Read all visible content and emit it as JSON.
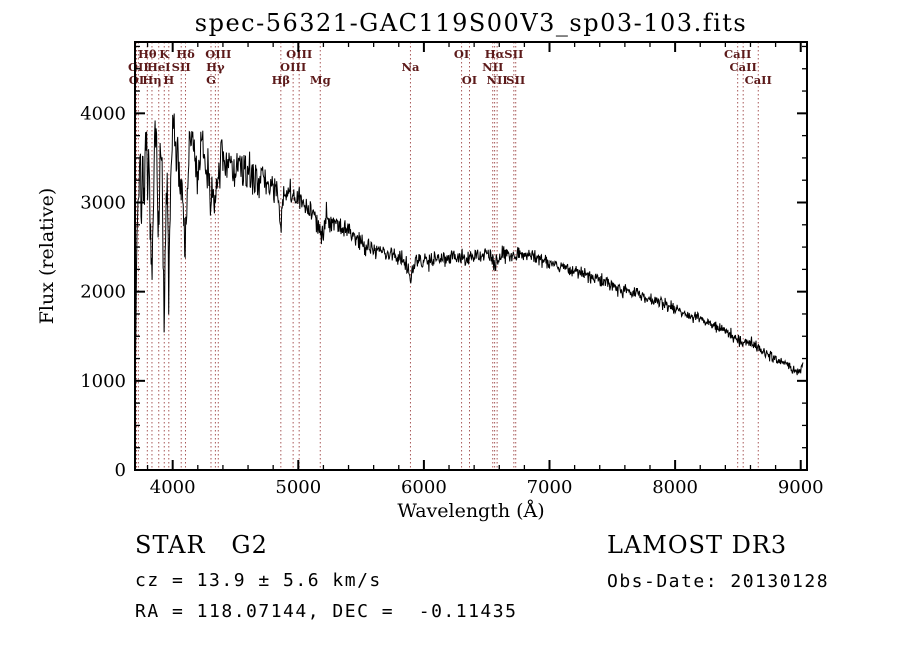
{
  "annotations": {
    "class_and_type": "STAR   G2",
    "cz": "cz = 13.9 ± 5.6 km/s",
    "radec": "RA = 118.07144, DEC =  -0.11435",
    "survey": "LAMOST DR3",
    "obs_date": "Obs-Date: 20130128"
  },
  "chart_data": {
    "type": "line",
    "title": "spec-56321-GAC119S00V3_sp03-103.fits",
    "xlabel": "Wavelength (Å)",
    "ylabel": "Flux (relative)",
    "xlim": [
      3700,
      9050
    ],
    "ylim": [
      0,
      4800
    ],
    "xticks": [
      4000,
      5000,
      6000,
      7000,
      8000,
      9000
    ],
    "yticks": [
      0,
      1000,
      2000,
      3000,
      4000
    ],
    "x_minor_step": 200,
    "y_minor_step": 250,
    "grid": false,
    "legend": false,
    "line_color": "#000000",
    "marker_line_color": "#a85858",
    "marker_label_color": "#5c1a1a",
    "noise_seed": 7,
    "spectral_lines": [
      {
        "wavelength": 3712,
        "label": "OI",
        "row": 2
      },
      {
        "wavelength": 3727,
        "label": "OII",
        "row": 1
      },
      {
        "wavelength": 3798,
        "label": "Hθ",
        "row": 0
      },
      {
        "wavelength": 3835,
        "label": "Hη",
        "row": 2
      },
      {
        "wavelength": 3889,
        "label": "HeI",
        "row": 1
      },
      {
        "wavelength": 3933,
        "label": "K",
        "row": 0
      },
      {
        "wavelength": 3969,
        "label": "H",
        "row": 2
      },
      {
        "wavelength": 4068,
        "label": "SII",
        "row": 1
      },
      {
        "wavelength": 4102,
        "label": "Hδ",
        "row": 0
      },
      {
        "wavelength": 4305,
        "label": "G",
        "row": 2
      },
      {
        "wavelength": 4340,
        "label": "Hγ",
        "row": 1
      },
      {
        "wavelength": 4363,
        "label": "OIII",
        "row": 0
      },
      {
        "wavelength": 4861,
        "label": "Hβ",
        "row": 2
      },
      {
        "wavelength": 4959,
        "label": "OIII",
        "row": 1
      },
      {
        "wavelength": 5007,
        "label": "OIII",
        "row": 0
      },
      {
        "wavelength": 5175,
        "label": "Mg",
        "row": 2
      },
      {
        "wavelength": 5893,
        "label": "Na",
        "row": 1
      },
      {
        "wavelength": 6300,
        "label": "OI",
        "row": 0
      },
      {
        "wavelength": 6363,
        "label": "OI",
        "row": 2
      },
      {
        "wavelength": 6548,
        "label": "NII",
        "row": 1
      },
      {
        "wavelength": 6563,
        "label": "Hα",
        "row": 0
      },
      {
        "wavelength": 6583,
        "label": "NII",
        "row": 2
      },
      {
        "wavelength": 6716,
        "label": "SII",
        "row": 0
      },
      {
        "wavelength": 6731,
        "label": "SII",
        "row": 2
      },
      {
        "wavelength": 8498,
        "label": "CaII",
        "row": 0
      },
      {
        "wavelength": 8542,
        "label": "CaII",
        "row": 1
      },
      {
        "wavelength": 8662,
        "label": "CaII",
        "row": 2
      }
    ],
    "continuum": [
      [
        3700,
        600
      ],
      [
        3706,
        1500
      ],
      [
        3712,
        2400
      ],
      [
        3720,
        2900
      ],
      [
        3730,
        3200
      ],
      [
        3740,
        3400
      ],
      [
        3750,
        2900
      ],
      [
        3762,
        3500
      ],
      [
        3775,
        3100
      ],
      [
        3788,
        3650
      ],
      [
        3798,
        3000
      ],
      [
        3810,
        3400
      ],
      [
        3822,
        2800
      ],
      [
        3835,
        1900
      ],
      [
        3848,
        3100
      ],
      [
        3860,
        3650
      ],
      [
        3872,
        3750
      ],
      [
        3889,
        2700
      ],
      [
        3900,
        3400
      ],
      [
        3912,
        3600
      ],
      [
        3933,
        1500
      ],
      [
        3948,
        2900
      ],
      [
        3958,
        3300
      ],
      [
        3969,
        1750
      ],
      [
        3980,
        2900
      ],
      [
        3995,
        3600
      ],
      [
        4005,
        4050
      ],
      [
        4020,
        3400
      ],
      [
        4040,
        3650
      ],
      [
        4060,
        3200
      ],
      [
        4080,
        3100
      ],
      [
        4102,
        2500
      ],
      [
        4120,
        3300
      ],
      [
        4140,
        3650
      ],
      [
        4160,
        3750
      ],
      [
        4180,
        3400
      ],
      [
        4200,
        3300
      ],
      [
        4225,
        3600
      ],
      [
        4250,
        3500
      ],
      [
        4280,
        3350
      ],
      [
        4305,
        3000
      ],
      [
        4325,
        3300
      ],
      [
        4340,
        2800
      ],
      [
        4360,
        3300
      ],
      [
        4390,
        3500
      ],
      [
        4420,
        3300
      ],
      [
        4455,
        3550
      ],
      [
        4490,
        3300
      ],
      [
        4530,
        3450
      ],
      [
        4570,
        3300
      ],
      [
        4610,
        3350
      ],
      [
        4650,
        3250
      ],
      [
        4700,
        3300
      ],
      [
        4750,
        3200
      ],
      [
        4800,
        3200
      ],
      [
        4830,
        3100
      ],
      [
        4861,
        2700
      ],
      [
        4890,
        3150
      ],
      [
        4920,
        3100
      ],
      [
        4960,
        3050
      ],
      [
        5000,
        3050
      ],
      [
        5040,
        2950
      ],
      [
        5080,
        2950
      ],
      [
        5120,
        2900
      ],
      [
        5175,
        2600
      ],
      [
        5220,
        2850
      ],
      [
        5260,
        2800
      ],
      [
        5300,
        2780
      ],
      [
        5350,
        2720
      ],
      [
        5400,
        2680
      ],
      [
        5450,
        2620
      ],
      [
        5500,
        2560
      ],
      [
        5560,
        2510
      ],
      [
        5620,
        2470
      ],
      [
        5680,
        2440
      ],
      [
        5740,
        2410
      ],
      [
        5800,
        2390
      ],
      [
        5850,
        2360
      ],
      [
        5893,
        2190
      ],
      [
        5940,
        2330
      ],
      [
        6000,
        2350
      ],
      [
        6060,
        2370
      ],
      [
        6120,
        2380
      ],
      [
        6180,
        2395
      ],
      [
        6240,
        2400
      ],
      [
        6300,
        2370
      ],
      [
        6363,
        2360
      ],
      [
        6420,
        2400
      ],
      [
        6480,
        2420
      ],
      [
        6520,
        2430
      ],
      [
        6563,
        2260
      ],
      [
        6610,
        2420
      ],
      [
        6660,
        2440
      ],
      [
        6716,
        2410
      ],
      [
        6760,
        2430
      ],
      [
        6820,
        2420
      ],
      [
        6880,
        2400
      ],
      [
        6940,
        2360
      ],
      [
        7000,
        2330
      ],
      [
        7060,
        2300
      ],
      [
        7120,
        2270
      ],
      [
        7180,
        2240
      ],
      [
        7240,
        2210
      ],
      [
        7300,
        2180
      ],
      [
        7360,
        2150
      ],
      [
        7420,
        2120
      ],
      [
        7480,
        2090
      ],
      [
        7540,
        2050
      ],
      [
        7600,
        2020
      ],
      [
        7660,
        1990
      ],
      [
        7720,
        1960
      ],
      [
        7780,
        1930
      ],
      [
        7840,
        1900
      ],
      [
        7900,
        1870
      ],
      [
        7960,
        1840
      ],
      [
        8020,
        1800
      ],
      [
        8080,
        1760
      ],
      [
        8140,
        1720
      ],
      [
        8200,
        1690
      ],
      [
        8260,
        1650
      ],
      [
        8320,
        1610
      ],
      [
        8380,
        1570
      ],
      [
        8440,
        1530
      ],
      [
        8498,
        1460
      ],
      [
        8542,
        1430
      ],
      [
        8600,
        1430
      ],
      [
        8662,
        1380
      ],
      [
        8700,
        1340
      ],
      [
        8740,
        1300
      ],
      [
        8780,
        1260
      ],
      [
        8820,
        1230
      ],
      [
        8860,
        1200
      ],
      [
        8900,
        1170
      ],
      [
        8940,
        1130
      ],
      [
        8970,
        1110
      ],
      [
        9000,
        1150
      ],
      [
        9020,
        1210
      ]
    ],
    "noise_amplitude": [
      [
        3700,
        520
      ],
      [
        3900,
        500
      ],
      [
        4100,
        450
      ],
      [
        4300,
        400
      ],
      [
        4500,
        330
      ],
      [
        4700,
        280
      ],
      [
        4900,
        240
      ],
      [
        5100,
        220
      ],
      [
        5300,
        200
      ],
      [
        5500,
        180
      ],
      [
        5700,
        165
      ],
      [
        5900,
        160
      ],
      [
        6100,
        150
      ],
      [
        6300,
        145
      ],
      [
        6500,
        135
      ],
      [
        6700,
        130
      ],
      [
        7000,
        120
      ],
      [
        7300,
        115
      ],
      [
        7600,
        110
      ],
      [
        8000,
        100
      ],
      [
        8400,
        95
      ],
      [
        8700,
        85
      ],
      [
        9020,
        80
      ]
    ]
  }
}
